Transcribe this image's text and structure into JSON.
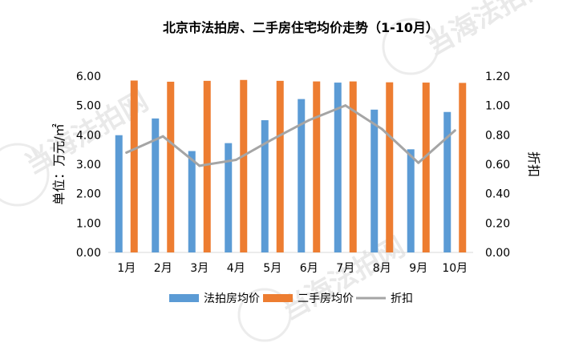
{
  "chart_data": {
    "type": "bar",
    "title": "北京市法拍房、二手房住宅均价走势（1-10月）",
    "categories": [
      "1月",
      "2月",
      "3月",
      "4月",
      "5月",
      "6月",
      "7月",
      "8月",
      "9月",
      "10月"
    ],
    "series": [
      {
        "name": "法拍房均价",
        "type": "bar",
        "axis": "left",
        "color": "#5b9bd5",
        "values": [
          3.99,
          4.56,
          3.45,
          3.72,
          4.5,
          5.22,
          5.78,
          4.86,
          3.51,
          4.78
        ]
      },
      {
        "name": "二手房均价",
        "type": "bar",
        "axis": "left",
        "color": "#ed7d31",
        "values": [
          5.85,
          5.81,
          5.84,
          5.87,
          5.84,
          5.82,
          5.82,
          5.79,
          5.78,
          5.77
        ]
      },
      {
        "name": "折扣",
        "type": "line",
        "axis": "right",
        "color": "#a5a5a5",
        "values": [
          0.68,
          0.79,
          0.59,
          0.63,
          0.77,
          0.9,
          1.0,
          0.84,
          0.61,
          0.83
        ]
      }
    ],
    "ylabel": "单位：万元/㎡",
    "y2label": "折扣",
    "ylim": [
      0,
      6
    ],
    "y2lim": [
      0,
      1.2
    ],
    "yticks": [
      "0.00",
      "1.00",
      "2.00",
      "3.00",
      "4.00",
      "5.00",
      "6.00"
    ],
    "y2ticks": [
      "0.00",
      "0.20",
      "0.40",
      "0.60",
      "0.80",
      "1.00",
      "1.20"
    ],
    "grid": false,
    "legend_position": "bottom"
  },
  "watermark": {
    "text": "当海法拍网",
    "url": "www.fapai.cn"
  }
}
